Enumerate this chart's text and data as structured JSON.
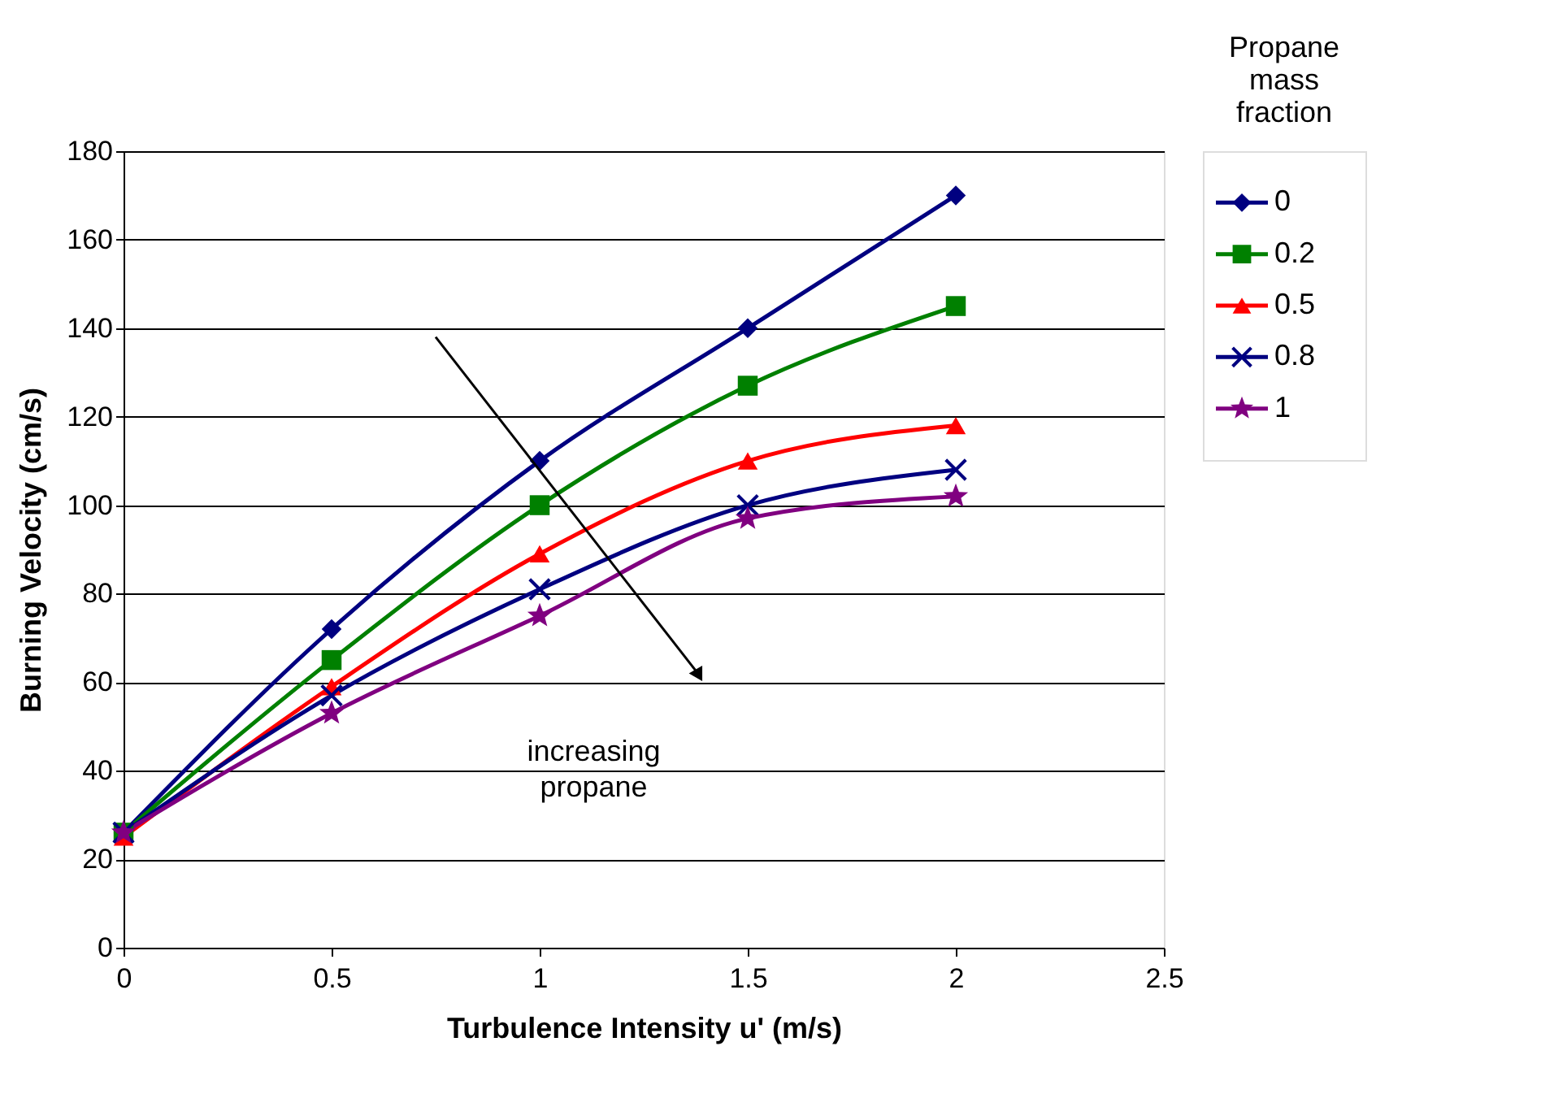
{
  "chart_data": {
    "type": "line",
    "xlabel": "Turbulence Intensity u' (m/s)",
    "ylabel": "Burning Velocity (cm/s)",
    "legend_title": "Propane mass fraction",
    "x": [
      0,
      0.5,
      1,
      1.5,
      2
    ],
    "series": [
      {
        "name": "0",
        "color": "#000080",
        "marker": "diamond",
        "values": [
          26,
          72,
          110,
          140,
          170
        ]
      },
      {
        "name": "0.2",
        "color": "#008000",
        "marker": "square",
        "values": [
          26,
          65,
          100,
          127,
          145
        ]
      },
      {
        "name": "0.5",
        "color": "#ff0000",
        "marker": "triangle",
        "values": [
          25,
          59,
          89,
          110,
          118
        ]
      },
      {
        "name": "0.8",
        "color": "#000080",
        "marker": "cross",
        "values": [
          26,
          57,
          81,
          100,
          108
        ]
      },
      {
        "name": "1",
        "color": "#800080",
        "marker": "star",
        "values": [
          26,
          53,
          75,
          97,
          102
        ]
      }
    ],
    "xlim": [
      0,
      2.5
    ],
    "xticks": [
      0,
      0.5,
      1,
      1.5,
      2,
      2.5
    ],
    "ylim": [
      0,
      180
    ],
    "yticks": [
      0,
      20,
      40,
      60,
      80,
      100,
      120,
      140,
      160,
      180
    ],
    "grid": "y",
    "legend": "right",
    "line_style": "solid",
    "annotations": [
      "increasing propane"
    ]
  }
}
